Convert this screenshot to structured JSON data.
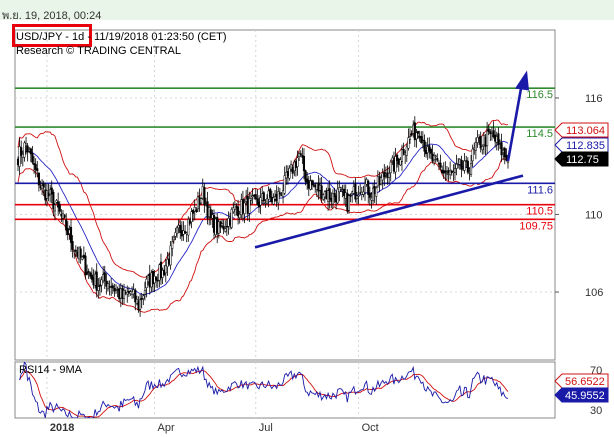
{
  "header": {
    "date": "พ.ย. 19, 2018, 00:24",
    "title": "USD/JPY - 1d - 11/19/2018 01:23:50 (CET)",
    "subtitle": "Research © TRADING CENTRAL"
  },
  "colors": {
    "resistance": "#2e8b2e",
    "pivot": "#1a1aa8",
    "support": "#e8000b",
    "bollinger": "#d01010",
    "moving_average": "#2828c8",
    "trendline": "#1a1aa8",
    "candle": "#000000",
    "rsi_line": "#1a1aa8",
    "rsi_ma": "#d01010",
    "grid": "#d4d4d4"
  },
  "chart_data": {
    "type": "candlestick",
    "instrument": "USD/JPY",
    "timeframe": "1d",
    "y_axis": {
      "ylim": [
        102.5,
        119.5
      ],
      "ticks": [
        106,
        110,
        116
      ],
      "side": "right"
    },
    "x_axis": {
      "labels": [
        "2018",
        "Apr",
        "Jul",
        "Oct"
      ]
    },
    "levels": [
      {
        "label": "116.5",
        "value": 116.5,
        "role": "resistance"
      },
      {
        "label": "114.5",
        "value": 114.5,
        "role": "resistance"
      },
      {
        "label": "111.6",
        "value": 111.6,
        "role": "pivot"
      },
      {
        "label": "110.5",
        "value": 110.5,
        "role": "support"
      },
      {
        "label": "109.75",
        "value": 109.75,
        "role": "support"
      }
    ],
    "price_badges": [
      {
        "label": "113.064",
        "value": 113.064,
        "style": "red-outline"
      },
      {
        "label": "112.835",
        "value": 112.835,
        "style": "blue-outline"
      },
      {
        "label": "112.75",
        "value": 112.75,
        "style": "black-filled"
      }
    ],
    "close_path": [
      [
        0,
        113.0
      ],
      [
        5,
        113.6
      ],
      [
        10,
        112.4
      ],
      [
        15,
        111.3
      ],
      [
        20,
        110.9
      ],
      [
        25,
        110.2
      ],
      [
        30,
        109.3
      ],
      [
        35,
        108.3
      ],
      [
        40,
        107.6
      ],
      [
        45,
        106.8
      ],
      [
        50,
        106.4
      ],
      [
        55,
        106.6
      ],
      [
        60,
        106.2
      ],
      [
        65,
        105.7
      ],
      [
        70,
        106.0
      ],
      [
        75,
        105.3
      ],
      [
        80,
        106.4
      ],
      [
        85,
        106.9
      ],
      [
        90,
        107.0
      ],
      [
        95,
        108.0
      ],
      [
        100,
        109.2
      ],
      [
        105,
        109.5
      ],
      [
        110,
        110.2
      ],
      [
        115,
        111.1
      ],
      [
        120,
        109.7
      ],
      [
        125,
        109.2
      ],
      [
        130,
        109.6
      ],
      [
        135,
        110.3
      ],
      [
        140,
        110.4
      ],
      [
        145,
        110.5
      ],
      [
        150,
        110.6
      ],
      [
        155,
        110.9
      ],
      [
        160,
        110.7
      ],
      [
        165,
        111.4
      ],
      [
        170,
        112.2
      ],
      [
        175,
        113.1
      ],
      [
        180,
        111.7
      ],
      [
        185,
        111.4
      ],
      [
        190,
        111.2
      ],
      [
        195,
        110.9
      ],
      [
        200,
        111.1
      ],
      [
        205,
        110.6
      ],
      [
        210,
        111.2
      ],
      [
        215,
        111.6
      ],
      [
        220,
        111.1
      ],
      [
        225,
        111.6
      ],
      [
        230,
        112.3
      ],
      [
        235,
        112.6
      ],
      [
        240,
        113.4
      ],
      [
        245,
        114.1
      ],
      [
        250,
        114.4
      ],
      [
        255,
        113.1
      ],
      [
        260,
        112.6
      ],
      [
        265,
        112.2
      ],
      [
        270,
        112.0
      ],
      [
        275,
        112.4
      ],
      [
        280,
        112.3
      ],
      [
        285,
        113.5
      ],
      [
        290,
        113.8
      ],
      [
        295,
        114.1
      ],
      [
        300,
        113.4
      ],
      [
        305,
        112.75
      ]
    ],
    "arrow": {
      "from": [
        305,
        112.75
      ],
      "to": [
        310,
        117.0
      ]
    },
    "indicator": {
      "label": "RSI14 - 9MA",
      "ticks": [
        30,
        70
      ],
      "ylim": [
        22,
        78
      ],
      "badges": [
        {
          "label": "56.6522",
          "value": 56.6522,
          "style": "red-outline"
        },
        {
          "label": "45.9552",
          "value": 45.9552,
          "style": "blue-filled"
        }
      ]
    }
  }
}
